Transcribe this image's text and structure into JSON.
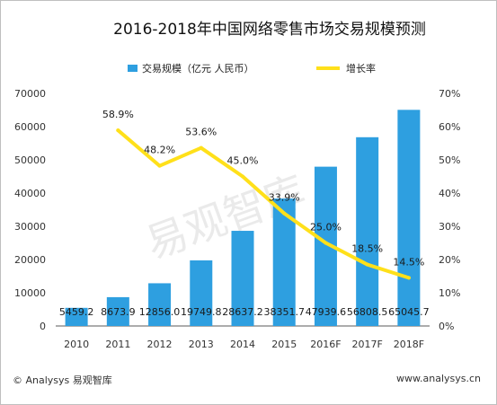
{
  "chart_data": {
    "type": "bar",
    "title": "2016-2018年中国网络零售市场交易规模预测",
    "categories": [
      "2010",
      "2011",
      "2012",
      "2013",
      "2014",
      "2015",
      "2016F",
      "2017F",
      "2018F"
    ],
    "series": [
      {
        "name": "交易规模（亿元 人民币）",
        "type": "bar",
        "axis": "left",
        "values": [
          5459.2,
          8673.9,
          12856.0,
          19749.8,
          28637.2,
          38351.7,
          47939.6,
          56808.5,
          65045.7
        ],
        "labels": [
          "5459.2",
          "8673.9",
          "12856.0",
          "19749.8",
          "28637.2",
          "38351.7",
          "47939.6",
          "56808.5",
          "65045.7"
        ],
        "color": "#2e9fe0"
      },
      {
        "name": "增长率",
        "type": "line",
        "axis": "right",
        "values": [
          null,
          58.9,
          48.2,
          53.6,
          45.0,
          33.9,
          25.0,
          18.5,
          14.5
        ],
        "labels": [
          "",
          "58.9%",
          "48.2%",
          "53.6%",
          "45.0%",
          "33.9%",
          "25.0%",
          "18.5%",
          "14.5%"
        ],
        "color": "#ffe01a"
      }
    ],
    "yleft": {
      "min": 0,
      "max": 70000,
      "ticks": [
        "0",
        "10000",
        "20000",
        "30000",
        "40000",
        "50000",
        "60000",
        "70000"
      ]
    },
    "yright": {
      "min": 0,
      "max": 70,
      "ticks": [
        "0%",
        "10%",
        "20%",
        "30%",
        "40%",
        "50%",
        "60%",
        "70%"
      ]
    },
    "grid": false,
    "legend": "top",
    "watermark": "易观智库"
  },
  "footer": {
    "left": "© Analysys 易观智库",
    "right": "www.analysys.cn"
  }
}
